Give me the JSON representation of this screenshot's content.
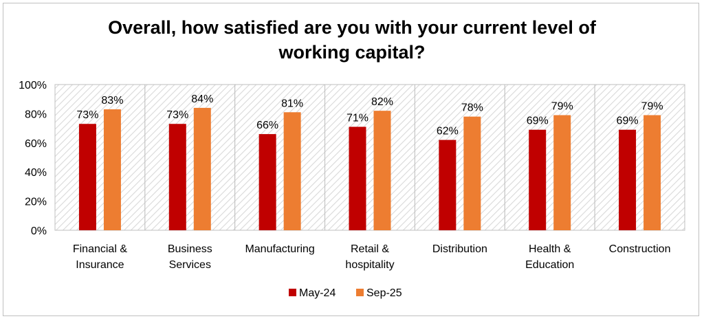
{
  "chart_data": {
    "type": "bar",
    "title": "Overall, how satisfied are you with your current level of\nworking capital?",
    "categories": [
      [
        "Financial  &",
        "Insurance"
      ],
      [
        "Business",
        "Services"
      ],
      [
        "Manufacturing"
      ],
      [
        "Retail &",
        "hospitality"
      ],
      [
        "Distribution"
      ],
      [
        "Health &",
        "Education"
      ],
      [
        "Construction"
      ]
    ],
    "series": [
      {
        "name": "May-24",
        "color": "#c00000",
        "values": [
          73,
          73,
          66,
          71,
          62,
          69,
          69
        ],
        "labels": [
          "73%",
          "73%",
          "66%",
          "71%",
          "62%",
          "69%",
          "69%"
        ]
      },
      {
        "name": "Sep-25",
        "color": "#ed7d31",
        "values": [
          83,
          84,
          81,
          82,
          78,
          79,
          79
        ],
        "labels": [
          "83%",
          "84%",
          "81%",
          "82%",
          "78%",
          "79%",
          "79%"
        ]
      }
    ],
    "ylim": [
      0,
      100
    ],
    "yticks": [
      0,
      20,
      40,
      60,
      80,
      100
    ],
    "ytick_labels": [
      "0%",
      "20%",
      "40%",
      "60%",
      "80%",
      "100%"
    ],
    "xlabel": "",
    "ylabel": "",
    "legend_position": "bottom",
    "grid": false,
    "plot_background": "diagonal-hatch",
    "plot_background_color": "#d9d9d9"
  }
}
